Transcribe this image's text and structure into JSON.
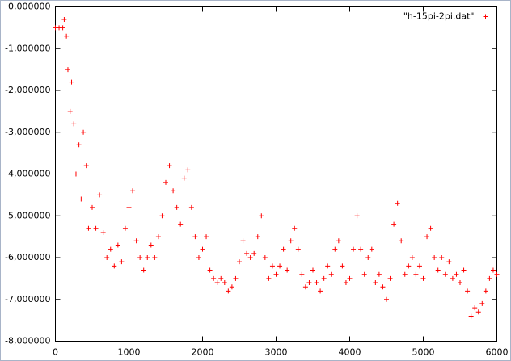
{
  "chart_data": {
    "type": "scatter",
    "x": [
      0,
      50,
      100,
      120,
      150,
      170,
      200,
      220,
      250,
      280,
      320,
      350,
      380,
      420,
      450,
      500,
      550,
      600,
      650,
      700,
      750,
      800,
      850,
      900,
      950,
      1000,
      1050,
      1100,
      1150,
      1200,
      1250,
      1300,
      1350,
      1400,
      1450,
      1500,
      1550,
      1600,
      1650,
      1700,
      1750,
      1800,
      1850,
      1900,
      1950,
      2000,
      2050,
      2100,
      2150,
      2200,
      2250,
      2300,
      2350,
      2400,
      2450,
      2500,
      2550,
      2600,
      2650,
      2700,
      2750,
      2800,
      2850,
      2900,
      2950,
      3000,
      3050,
      3100,
      3150,
      3200,
      3250,
      3300,
      3350,
      3400,
      3450,
      3500,
      3550,
      3600,
      3650,
      3700,
      3750,
      3800,
      3850,
      3900,
      3950,
      4000,
      4050,
      4100,
      4150,
      4200,
      4250,
      4300,
      4350,
      4400,
      4450,
      4500,
      4550,
      4600,
      4650,
      4700,
      4750,
      4800,
      4850,
      4900,
      4950,
      5000,
      5050,
      5100,
      5150,
      5200,
      5250,
      5300,
      5350,
      5400,
      5450,
      5500,
      5550,
      5600,
      5650,
      5700,
      5750,
      5800,
      5850,
      5900,
      5950,
      6000
    ],
    "series": [
      {
        "name": "\"h-15pi-2pi.dat\"",
        "color": "#ff0000",
        "values": [
          -0.5,
          -0.5,
          -0.5,
          -0.3,
          -0.7,
          -1.5,
          -2.5,
          -1.8,
          -2.8,
          -4.0,
          -3.3,
          -4.6,
          -3.0,
          -3.8,
          -5.3,
          -4.8,
          -5.3,
          -4.5,
          -5.4,
          -6.0,
          -5.8,
          -6.2,
          -5.7,
          -6.1,
          -5.3,
          -4.8,
          -4.4,
          -5.6,
          -6.0,
          -6.3,
          -6.0,
          -5.7,
          -6.0,
          -5.5,
          -5.0,
          -4.2,
          -3.8,
          -4.4,
          -4.8,
          -5.2,
          -4.1,
          -3.9,
          -4.8,
          -5.5,
          -6.0,
          -5.8,
          -5.5,
          -6.3,
          -6.5,
          -6.6,
          -6.5,
          -6.6,
          -6.8,
          -6.7,
          -6.5,
          -6.1,
          -5.6,
          -5.9,
          -6.0,
          -5.9,
          -5.5,
          -5.0,
          -6.0,
          -6.5,
          -6.2,
          -6.4,
          -6.2,
          -5.8,
          -6.3,
          -5.6,
          -5.3,
          -5.8,
          -6.4,
          -6.7,
          -6.6,
          -6.3,
          -6.6,
          -6.8,
          -6.5,
          -6.2,
          -6.4,
          -5.8,
          -5.6,
          -6.2,
          -6.6,
          -6.5,
          -5.8,
          -5.0,
          -5.8,
          -6.4,
          -6.0,
          -5.8,
          -6.6,
          -6.4,
          -6.7,
          -7.0,
          -6.5,
          -5.2,
          -4.7,
          -5.6,
          -6.4,
          -6.2,
          -6.0,
          -6.4,
          -6.2,
          -6.5,
          -5.5,
          -5.3,
          -6.0,
          -6.3,
          -6.0,
          -6.4,
          -6.1,
          -6.5,
          -6.4,
          -6.6,
          -6.3,
          -6.8,
          -7.4,
          -7.2,
          -7.3,
          -7.1,
          -6.8,
          -6.5,
          -6.3,
          -6.4
        ]
      }
    ],
    "xlim": [
      0,
      6000
    ],
    "xticks": [
      0,
      1000,
      2000,
      3000,
      4000,
      5000,
      6000
    ],
    "ylim": [
      -8,
      0
    ],
    "yticks": [
      {
        "value": 0,
        "label": "0,000000"
      },
      {
        "value": -1,
        "label": "-1,000000"
      },
      {
        "value": -2,
        "label": "-2,000000"
      },
      {
        "value": -3,
        "label": "-3,000000"
      },
      {
        "value": -4,
        "label": "-4,000000"
      },
      {
        "value": -5,
        "label": "-5,000000"
      },
      {
        "value": -6,
        "label": "-6,000000"
      },
      {
        "value": -7,
        "label": "-7,000000"
      },
      {
        "value": -8,
        "label": "-8,000000"
      }
    ],
    "legend": "top-right"
  }
}
